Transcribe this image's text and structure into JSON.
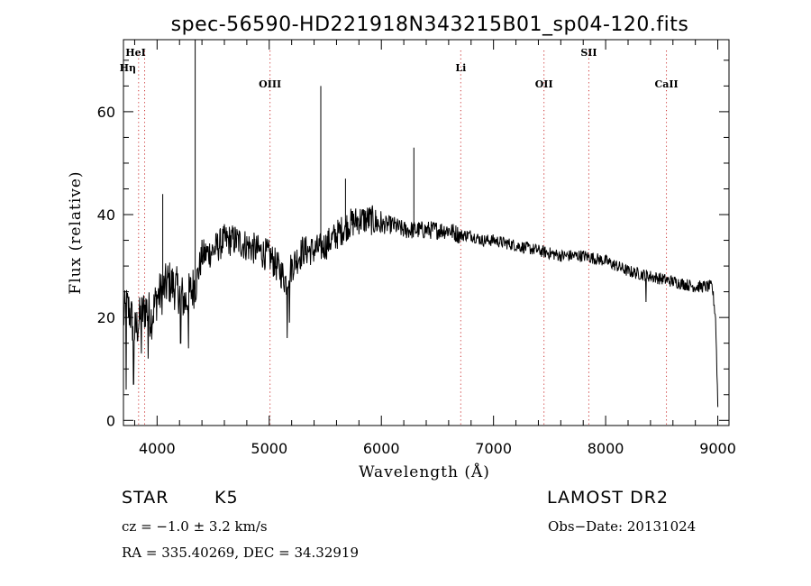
{
  "chart_data": {
    "type": "line",
    "title": "spec-56590-HD221918N343215B01_sp04-120.fits",
    "xlabel": "Wavelength (Å)",
    "ylabel": "Flux (relative)",
    "xlim": [
      3700,
      9100
    ],
    "ylim": [
      -1,
      74
    ],
    "x_ticks": [
      4000,
      5000,
      6000,
      7000,
      8000,
      9000
    ],
    "y_ticks": [
      0,
      20,
      40,
      60
    ],
    "grid": false,
    "line_color": "#000000",
    "marker_color": "#cc3333",
    "line_markers": [
      {
        "label": "HeI",
        "x": 3889,
        "style": "dotted"
      },
      {
        "label": "Hη",
        "x": 3835,
        "style": "dotted"
      },
      {
        "label": "OIII",
        "x": 5007,
        "style": "dotted"
      },
      {
        "label": "Li",
        "x": 6708,
        "style": "dotted"
      },
      {
        "label": "OII",
        "x": 7450,
        "style": "dotted"
      },
      {
        "label": "SII",
        "x": 7850,
        "style": "dotted"
      },
      {
        "label": "CaII",
        "x": 8542,
        "style": "dotted"
      }
    ],
    "anchors": [
      [
        3700,
        20
      ],
      [
        3730,
        22
      ],
      [
        3760,
        21
      ],
      [
        3800,
        17
      ],
      [
        3850,
        20
      ],
      [
        3900,
        22
      ],
      [
        3950,
        20
      ],
      [
        4000,
        24
      ],
      [
        4050,
        25
      ],
      [
        4100,
        27
      ],
      [
        4150,
        26
      ],
      [
        4200,
        25
      ],
      [
        4250,
        23
      ],
      [
        4300,
        25
      ],
      [
        4350,
        27
      ],
      [
        4400,
        32
      ],
      [
        4500,
        33
      ],
      [
        4600,
        35
      ],
      [
        4700,
        35
      ],
      [
        4800,
        34
      ],
      [
        4900,
        33
      ],
      [
        5000,
        32
      ],
      [
        5100,
        29
      ],
      [
        5150,
        27
      ],
      [
        5200,
        30
      ],
      [
        5300,
        33
      ],
      [
        5400,
        33
      ],
      [
        5500,
        34
      ],
      [
        5600,
        36
      ],
      [
        5700,
        38
      ],
      [
        5800,
        39
      ],
      [
        5900,
        39
      ],
      [
        6000,
        38
      ],
      [
        6100,
        38
      ],
      [
        6200,
        37
      ],
      [
        6300,
        37
      ],
      [
        6400,
        37
      ],
      [
        6500,
        37
      ],
      [
        6600,
        37
      ],
      [
        6700,
        36
      ],
      [
        6800,
        36
      ],
      [
        6900,
        35
      ],
      [
        7000,
        35
      ],
      [
        7200,
        34
      ],
      [
        7400,
        33
      ],
      [
        7600,
        32
      ],
      [
        7800,
        32
      ],
      [
        8000,
        31
      ],
      [
        8200,
        29
      ],
      [
        8400,
        28
      ],
      [
        8600,
        27
      ],
      [
        8800,
        26
      ],
      [
        8900,
        26
      ],
      [
        8950,
        26
      ],
      [
        8980,
        20
      ],
      [
        9000,
        3
      ]
    ],
    "spikes": [
      {
        "x": 4050,
        "y": 44
      },
      {
        "x": 4340,
        "y": 74
      },
      {
        "x": 5460,
        "y": 65
      },
      {
        "x": 5680,
        "y": 47
      },
      {
        "x": 6290,
        "y": 53
      }
    ],
    "dips": [
      {
        "x": 3725,
        "y": 6
      },
      {
        "x": 3790,
        "y": 7
      },
      {
        "x": 3860,
        "y": 13
      },
      {
        "x": 3920,
        "y": 12
      },
      {
        "x": 4210,
        "y": 15
      },
      {
        "x": 4280,
        "y": 14
      },
      {
        "x": 5160,
        "y": 16
      },
      {
        "x": 5180,
        "y": 19
      },
      {
        "x": 8360,
        "y": 23
      }
    ]
  },
  "info": {
    "object_class": "STAR",
    "subclass": "K5",
    "survey": "LAMOST DR2",
    "redshift": "cz = −1.0 ± 3.2 km/s",
    "obs_date": "Obs−Date: 20131024",
    "coords": "RA = 335.40269, DEC =  34.32919"
  }
}
